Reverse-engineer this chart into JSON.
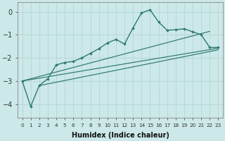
{
  "xlabel": "Humidex (Indice chaleur)",
  "background_color": "#cce8e8",
  "grid_color": "#b8d8d8",
  "line_color": "#2d7a6e",
  "x_values": [
    0,
    1,
    2,
    3,
    4,
    5,
    6,
    7,
    8,
    9,
    10,
    11,
    12,
    13,
    14,
    15,
    16,
    17,
    18,
    19,
    20,
    21,
    22,
    23
  ],
  "line_main": [
    -3.0,
    -4.1,
    -3.2,
    -2.9,
    -2.3,
    -2.2,
    -2.15,
    -2.0,
    -1.8,
    -1.6,
    -1.35,
    -1.2,
    -1.4,
    -0.7,
    -0.05,
    0.08,
    -0.45,
    -0.8,
    -0.78,
    -0.74,
    -0.87,
    -1.0,
    -1.55,
    -1.55
  ],
  "straight_line1_x": [
    0,
    22
  ],
  "straight_line1_y": [
    -3.0,
    -0.85
  ],
  "straight_line2_x": [
    0,
    23
  ],
  "straight_line2_y": [
    -3.0,
    -1.58
  ],
  "straight_line3_x": [
    2,
    23
  ],
  "straight_line3_y": [
    -3.2,
    -1.65
  ],
  "ylim": [
    -4.6,
    0.4
  ],
  "yticks": [
    0,
    -1,
    -2,
    -3,
    -4
  ],
  "xlim": [
    -0.5,
    23.5
  ],
  "xtick_labels": [
    "0",
    "1",
    "2",
    "3",
    "4",
    "5",
    "6",
    "7",
    "8",
    "9",
    "10",
    "11",
    "12",
    "13",
    "14",
    "15",
    "16",
    "17",
    "18",
    "19",
    "20",
    "21",
    "22",
    "23"
  ]
}
